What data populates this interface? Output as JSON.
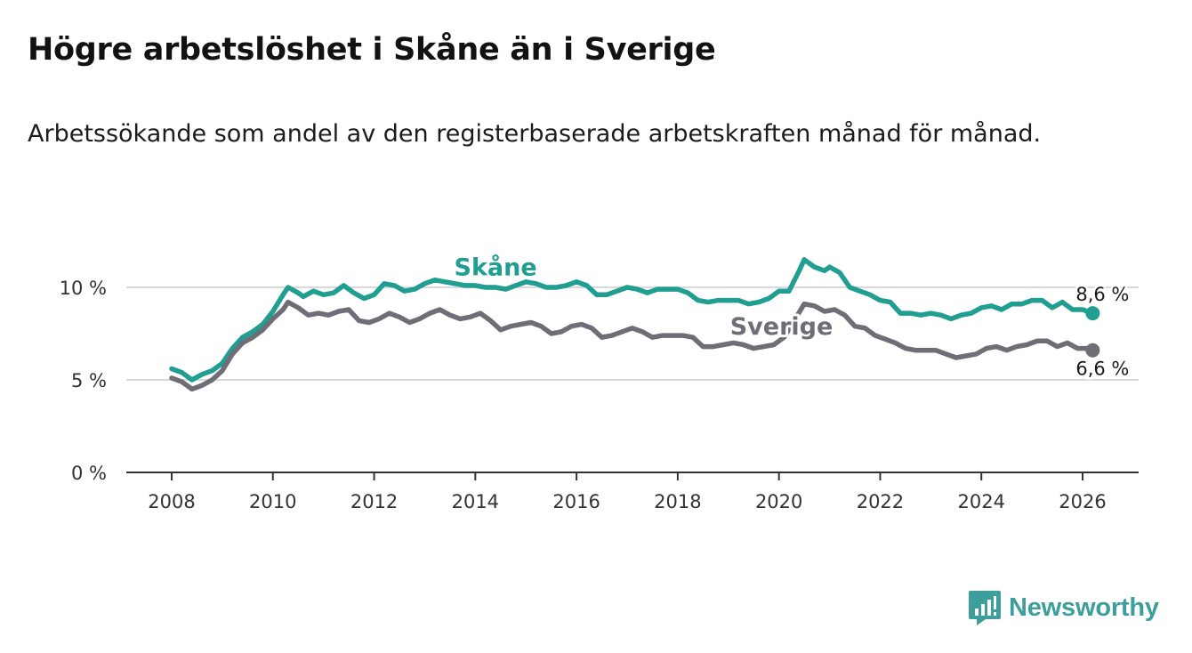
{
  "title": "Högre arbetslöshet i Skåne än i Sverige",
  "subtitle": "Arbetssökande som andel av den registerbaserade arbetskraften månad för månad.",
  "brand": {
    "name": "Newsworthy",
    "color": "#3d9e9b",
    "icon": "newsworthy-chart-bubble-icon"
  },
  "chart_data": {
    "type": "line",
    "title": "Högre arbetslöshet i Skåne än i Sverige",
    "xlabel": "",
    "ylabel": "",
    "xlim": [
      2007.5,
      2027.0
    ],
    "ylim": [
      0,
      10
    ],
    "x_ticks": [
      2008,
      2010,
      2012,
      2014,
      2016,
      2018,
      2020,
      2022,
      2024,
      2026
    ],
    "y_ticks": [
      {
        "value": 0,
        "label": "0 %"
      },
      {
        "value": 5,
        "label": "5 %"
      },
      {
        "value": 10,
        "label": "10 %"
      }
    ],
    "grid": true,
    "series": [
      {
        "name": "Skåne",
        "color": "#1f9e91",
        "end_label": "8,6 %",
        "points": [
          [
            2008.0,
            5.6
          ],
          [
            2008.2,
            5.4
          ],
          [
            2008.4,
            5.0
          ],
          [
            2008.6,
            5.3
          ],
          [
            2008.8,
            5.5
          ],
          [
            2009.0,
            5.9
          ],
          [
            2009.2,
            6.7
          ],
          [
            2009.4,
            7.3
          ],
          [
            2009.6,
            7.6
          ],
          [
            2009.8,
            8.0
          ],
          [
            2010.0,
            8.7
          ],
          [
            2010.2,
            9.6
          ],
          [
            2010.3,
            10.0
          ],
          [
            2010.5,
            9.7
          ],
          [
            2010.6,
            9.5
          ],
          [
            2010.8,
            9.8
          ],
          [
            2011.0,
            9.6
          ],
          [
            2011.2,
            9.7
          ],
          [
            2011.4,
            10.1
          ],
          [
            2011.6,
            9.7
          ],
          [
            2011.8,
            9.4
          ],
          [
            2012.0,
            9.6
          ],
          [
            2012.2,
            10.2
          ],
          [
            2012.4,
            10.1
          ],
          [
            2012.6,
            9.8
          ],
          [
            2012.8,
            9.9
          ],
          [
            2013.0,
            10.2
          ],
          [
            2013.2,
            10.4
          ],
          [
            2013.4,
            10.3
          ],
          [
            2013.6,
            10.2
          ],
          [
            2013.8,
            10.1
          ],
          [
            2014.0,
            10.1
          ],
          [
            2014.2,
            10.0
          ],
          [
            2014.4,
            10.0
          ],
          [
            2014.6,
            9.9
          ],
          [
            2014.8,
            10.1
          ],
          [
            2015.0,
            10.3
          ],
          [
            2015.2,
            10.2
          ],
          [
            2015.4,
            10.0
          ],
          [
            2015.6,
            10.0
          ],
          [
            2015.8,
            10.1
          ],
          [
            2016.0,
            10.3
          ],
          [
            2016.2,
            10.1
          ],
          [
            2016.4,
            9.6
          ],
          [
            2016.6,
            9.6
          ],
          [
            2016.8,
            9.8
          ],
          [
            2017.0,
            10.0
          ],
          [
            2017.2,
            9.9
          ],
          [
            2017.4,
            9.7
          ],
          [
            2017.6,
            9.9
          ],
          [
            2017.8,
            9.9
          ],
          [
            2018.0,
            9.9
          ],
          [
            2018.2,
            9.7
          ],
          [
            2018.4,
            9.3
          ],
          [
            2018.6,
            9.2
          ],
          [
            2018.8,
            9.3
          ],
          [
            2019.0,
            9.3
          ],
          [
            2019.2,
            9.3
          ],
          [
            2019.4,
            9.1
          ],
          [
            2019.6,
            9.2
          ],
          [
            2019.8,
            9.4
          ],
          [
            2020.0,
            9.8
          ],
          [
            2020.2,
            9.8
          ],
          [
            2020.4,
            10.9
          ],
          [
            2020.5,
            11.5
          ],
          [
            2020.7,
            11.1
          ],
          [
            2020.9,
            10.9
          ],
          [
            2021.0,
            11.1
          ],
          [
            2021.2,
            10.8
          ],
          [
            2021.4,
            10.0
          ],
          [
            2021.6,
            9.8
          ],
          [
            2021.8,
            9.6
          ],
          [
            2022.0,
            9.3
          ],
          [
            2022.2,
            9.2
          ],
          [
            2022.4,
            8.6
          ],
          [
            2022.6,
            8.6
          ],
          [
            2022.8,
            8.5
          ],
          [
            2023.0,
            8.6
          ],
          [
            2023.2,
            8.5
          ],
          [
            2023.4,
            8.3
          ],
          [
            2023.6,
            8.5
          ],
          [
            2023.8,
            8.6
          ],
          [
            2024.0,
            8.9
          ],
          [
            2024.2,
            9.0
          ],
          [
            2024.4,
            8.8
          ],
          [
            2024.6,
            9.1
          ],
          [
            2024.8,
            9.1
          ],
          [
            2025.0,
            9.3
          ],
          [
            2025.2,
            9.3
          ],
          [
            2025.4,
            8.9
          ],
          [
            2025.6,
            9.2
          ],
          [
            2025.8,
            8.8
          ],
          [
            2026.0,
            8.8
          ],
          [
            2026.2,
            8.6
          ]
        ]
      },
      {
        "name": "Sverige",
        "color": "#6f6d75",
        "end_label": "6,6 %",
        "points": [
          [
            2008.0,
            5.1
          ],
          [
            2008.2,
            4.9
          ],
          [
            2008.4,
            4.5
          ],
          [
            2008.6,
            4.7
          ],
          [
            2008.8,
            5.0
          ],
          [
            2009.0,
            5.5
          ],
          [
            2009.2,
            6.4
          ],
          [
            2009.4,
            7.0
          ],
          [
            2009.6,
            7.3
          ],
          [
            2009.8,
            7.7
          ],
          [
            2010.0,
            8.3
          ],
          [
            2010.2,
            8.8
          ],
          [
            2010.3,
            9.2
          ],
          [
            2010.5,
            8.9
          ],
          [
            2010.7,
            8.5
          ],
          [
            2010.9,
            8.6
          ],
          [
            2011.1,
            8.5
          ],
          [
            2011.3,
            8.7
          ],
          [
            2011.5,
            8.8
          ],
          [
            2011.7,
            8.2
          ],
          [
            2011.9,
            8.1
          ],
          [
            2012.1,
            8.3
          ],
          [
            2012.3,
            8.6
          ],
          [
            2012.5,
            8.4
          ],
          [
            2012.7,
            8.1
          ],
          [
            2012.9,
            8.3
          ],
          [
            2013.1,
            8.6
          ],
          [
            2013.3,
            8.8
          ],
          [
            2013.5,
            8.5
          ],
          [
            2013.7,
            8.3
          ],
          [
            2013.9,
            8.4
          ],
          [
            2014.1,
            8.6
          ],
          [
            2014.3,
            8.2
          ],
          [
            2014.5,
            7.7
          ],
          [
            2014.7,
            7.9
          ],
          [
            2014.9,
            8.0
          ],
          [
            2015.1,
            8.1
          ],
          [
            2015.3,
            7.9
          ],
          [
            2015.5,
            7.5
          ],
          [
            2015.7,
            7.6
          ],
          [
            2015.9,
            7.9
          ],
          [
            2016.1,
            8.0
          ],
          [
            2016.3,
            7.8
          ],
          [
            2016.5,
            7.3
          ],
          [
            2016.7,
            7.4
          ],
          [
            2016.9,
            7.6
          ],
          [
            2017.1,
            7.8
          ],
          [
            2017.3,
            7.6
          ],
          [
            2017.5,
            7.3
          ],
          [
            2017.7,
            7.4
          ],
          [
            2017.9,
            7.4
          ],
          [
            2018.1,
            7.4
          ],
          [
            2018.3,
            7.3
          ],
          [
            2018.5,
            6.8
          ],
          [
            2018.7,
            6.8
          ],
          [
            2018.9,
            6.9
          ],
          [
            2019.1,
            7.0
          ],
          [
            2019.3,
            6.9
          ],
          [
            2019.5,
            6.7
          ],
          [
            2019.7,
            6.8
          ],
          [
            2019.9,
            6.9
          ],
          [
            2020.1,
            7.3
          ],
          [
            2020.3,
            8.2
          ],
          [
            2020.5,
            9.1
          ],
          [
            2020.7,
            9.0
          ],
          [
            2020.9,
            8.7
          ],
          [
            2021.1,
            8.8
          ],
          [
            2021.3,
            8.5
          ],
          [
            2021.5,
            7.9
          ],
          [
            2021.7,
            7.8
          ],
          [
            2021.9,
            7.4
          ],
          [
            2022.1,
            7.2
          ],
          [
            2022.3,
            7.0
          ],
          [
            2022.5,
            6.7
          ],
          [
            2022.7,
            6.6
          ],
          [
            2022.9,
            6.6
          ],
          [
            2023.1,
            6.6
          ],
          [
            2023.3,
            6.4
          ],
          [
            2023.5,
            6.2
          ],
          [
            2023.7,
            6.3
          ],
          [
            2023.9,
            6.4
          ],
          [
            2024.1,
            6.7
          ],
          [
            2024.3,
            6.8
          ],
          [
            2024.5,
            6.6
          ],
          [
            2024.7,
            6.8
          ],
          [
            2024.9,
            6.9
          ],
          [
            2025.1,
            7.1
          ],
          [
            2025.3,
            7.1
          ],
          [
            2025.5,
            6.8
          ],
          [
            2025.7,
            7.0
          ],
          [
            2025.9,
            6.7
          ],
          [
            2026.1,
            6.7
          ],
          [
            2026.2,
            6.6
          ]
        ]
      }
    ],
    "annotations": [
      {
        "series": "Skåne",
        "text": "Skåne",
        "anchor_x": 2014.4,
        "anchor_y": 10.65
      },
      {
        "series": "Sverige",
        "text": "Sverige",
        "anchor_x": 2020.05,
        "anchor_y": 7.45
      }
    ]
  }
}
